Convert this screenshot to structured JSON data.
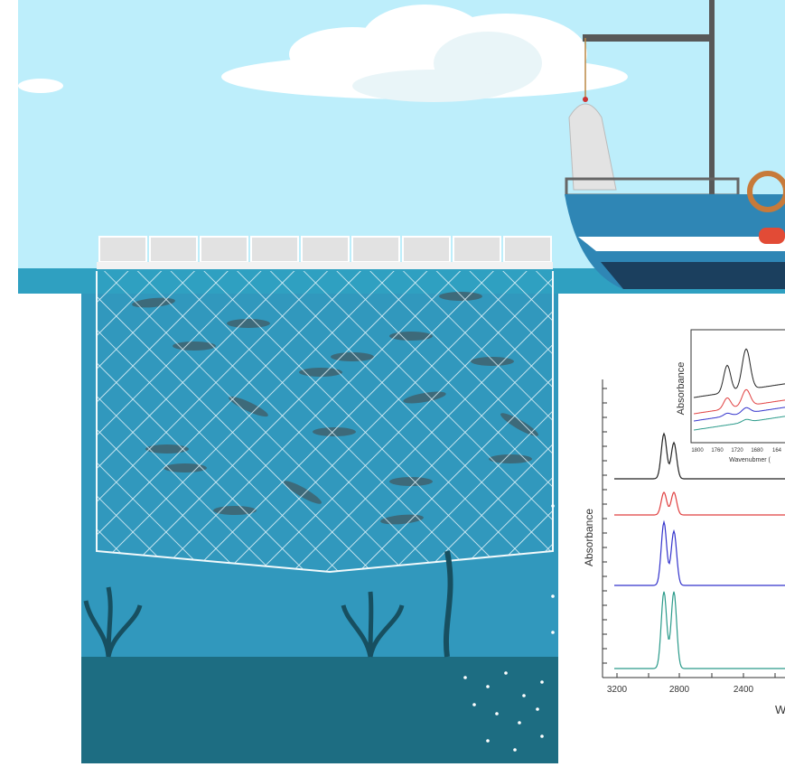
{
  "spectrum": {
    "y_label": "Absorbance",
    "x_ticks": [
      "3200",
      "2800",
      "2400"
    ],
    "x_label": "W"
  },
  "inset": {
    "y_label": "Absorbance",
    "x_label": "Wavenubmer (",
    "x_ticks": [
      "1800",
      "1760",
      "1720",
      "1680",
      "164"
    ]
  }
}
